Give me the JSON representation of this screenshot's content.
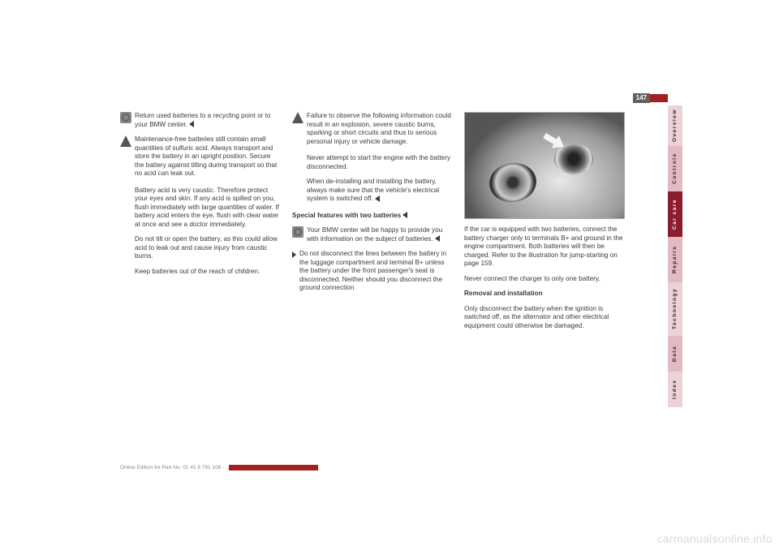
{
  "page_number": "147",
  "photo_code": "46cde036",
  "col1": {
    "p1_icon": "recycle",
    "p1": "Return used batteries to a recycling point or to your BMW center.",
    "p1_marker": true,
    "p2_icon": "warning",
    "p2a": "Maintenance-free batteries still contain small quantities of sulfuric acid. Always transport and store the battery in an upright position. Secure the battery against tilting during transport so that no acid can leak out.",
    "p2b": "Battery acid is very caustic. Therefore protect your eyes and skin. If any acid is spilled on you, flush immediately with large quantities of water. If battery acid enters the eye, flush with clear water at once and see a doctor immediately.",
    "p2c": "Do not tilt or open the battery, as this could allow acid to leak out and cause injury from caustic burns.",
    "p2d": "Keep batteries out of the reach of children."
  },
  "col2": {
    "p1_icon": "warning",
    "p1": "Failure to observe the following information could result in an explosion, severe caustic burns, sparking or short circuits and thus to serious personal injury or vehicle damage.",
    "p2": "Never attempt to start the engine with the battery disconnected.",
    "p3a": "When de-installing and installing the battery, always make sure that the vehicle's electrical system is switched off.",
    "p3_marker": true,
    "p4_heading": "Special features with two batteries",
    "p4_marker": true,
    "p5_icon": "recycle",
    "p5": "Your BMW center will be happy to provide you with information on the subject of batteries.",
    "bulleta_marker": true,
    "bulleta": "Do not disconnect the lines between the battery in the luggage compartment and terminal B+ unless the battery under the front passenger's seat is disconnected. Neither should you disconnect the ground connection"
  },
  "col3": {
    "p1": "If the car is equipped with two batteries, connect the battery charger only to terminals B+ and ground in the engine compartment. Both batteries will then be charged. Refer to the illustration for jump-starting on page 159.",
    "p2": "Never connect the charger to only one battery.",
    "heading": "Removal and installation",
    "p3": "Only disconnect the battery when the ignition is switched off, as the alternator and other electrical equipment could otherwise be damaged."
  },
  "tabs": [
    {
      "label": "Overview",
      "bg": "#e9d3d7",
      "h": 50
    },
    {
      "label": "Controls",
      "bg": "#e3b9c3",
      "h": 56
    },
    {
      "label": "Car care",
      "bg": "#8b1d2f",
      "h": 56,
      "color": "#ffffff"
    },
    {
      "label": "Repairs",
      "bg": "#e3b9c3",
      "h": 56
    },
    {
      "label": "Technology",
      "bg": "#e9d3d7",
      "h": 66
    },
    {
      "label": "Data",
      "bg": "#e3b9c3",
      "h": 44
    },
    {
      "label": "Index",
      "bg": "#e9d3d7",
      "h": 44
    }
  ],
  "footer": "Online Edition for Part No. 01 41 9 791 108 - ",
  "watermark": "carmanualsonline.info"
}
